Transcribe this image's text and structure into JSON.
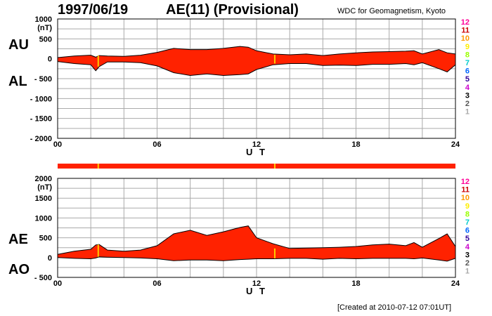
{
  "header": {
    "date": "1997/06/19",
    "title": "AE(11) (Provisional)",
    "source": "WDC for Geomagnetism, Kyoto",
    "created": "[Created at 2010-07-12 07:01UT]"
  },
  "colors": {
    "fill": "#ff2200",
    "outline": "#000000",
    "grid": "#aaaaaa",
    "marker": "#ffcc00",
    "station_colors": [
      "#ff0099",
      "#cc0000",
      "#ff9900",
      "#ffee00",
      "#99ff00",
      "#00cccc",
      "#0066ff",
      "#330099",
      "#cc00cc",
      "#000000",
      "#555555",
      "#aaaaaa"
    ]
  },
  "station_labels": [
    "12",
    "11",
    "10",
    "9",
    "8",
    "7",
    "6",
    "5",
    "4",
    "3",
    "2",
    "1"
  ],
  "marker_hours": [
    2.45,
    13.1
  ],
  "strip_hours": [
    0,
    24
  ],
  "chart_data": [
    {
      "type": "area",
      "name": "AU/AL",
      "labels": [
        "AU",
        "AL"
      ],
      "unit": "(nT)",
      "xlabel": "U T",
      "xlim": [
        0,
        24
      ],
      "ylim": [
        -2000,
        1000
      ],
      "yticks": [
        "1000",
        "500",
        "0",
        "- 500",
        "- 1000",
        "- 1500",
        "- 2000"
      ],
      "ytick_values": [
        1000,
        500,
        0,
        -500,
        -1000,
        -1500,
        -2000
      ],
      "xticks": [
        "00",
        "06",
        "12",
        "18",
        "24"
      ],
      "xtick_values": [
        0,
        6,
        12,
        18,
        24
      ],
      "hours": [
        0,
        1,
        2,
        2.3,
        2.5,
        3,
        4,
        5,
        6,
        7,
        8,
        9,
        10,
        11,
        11.5,
        12,
        13,
        14,
        15,
        16,
        17,
        18,
        19,
        20,
        21,
        21.5,
        22,
        23,
        23.5,
        24
      ],
      "upper": [
        30,
        70,
        90,
        40,
        80,
        70,
        60,
        90,
        160,
        260,
        230,
        230,
        260,
        310,
        290,
        200,
        120,
        100,
        120,
        80,
        120,
        150,
        170,
        180,
        190,
        200,
        120,
        230,
        150,
        120
      ],
      "lower": [
        -70,
        -120,
        -150,
        -300,
        -200,
        -80,
        -80,
        -100,
        -180,
        -350,
        -420,
        -380,
        -420,
        -400,
        -380,
        -270,
        -150,
        -120,
        -120,
        -170,
        -160,
        -170,
        -140,
        -140,
        -120,
        -150,
        -100,
        -250,
        -330,
        -150
      ]
    },
    {
      "type": "area",
      "name": "AE/AO",
      "labels": [
        "AE",
        "AO"
      ],
      "unit": "(nT)",
      "xlabel": "U T",
      "xlim": [
        0,
        24
      ],
      "ylim": [
        -500,
        2000
      ],
      "yticks": [
        "2000",
        "1500",
        "1000",
        "500",
        "0",
        "- 500"
      ],
      "ytick_values": [
        2000,
        1500,
        1000,
        500,
        0,
        -500
      ],
      "xticks": [
        "00",
        "06",
        "12",
        "18",
        "24"
      ],
      "xtick_values": [
        0,
        6,
        12,
        18,
        24
      ],
      "hours": [
        0,
        1,
        2,
        2.3,
        2.5,
        3,
        4,
        5,
        6,
        7,
        8,
        9,
        10,
        11,
        11.5,
        12,
        13,
        14,
        15,
        16,
        17,
        18,
        19,
        20,
        21,
        21.5,
        22,
        23,
        23.5,
        24
      ],
      "upper": [
        80,
        160,
        210,
        320,
        330,
        190,
        160,
        190,
        300,
        600,
        690,
        560,
        650,
        760,
        800,
        500,
        350,
        230,
        240,
        250,
        260,
        280,
        320,
        340,
        300,
        380,
        260,
        480,
        600,
        280
      ],
      "lower": [
        0,
        -20,
        -30,
        -10,
        20,
        10,
        0,
        -10,
        -30,
        -80,
        -60,
        -60,
        -80,
        -50,
        -40,
        -30,
        -30,
        -20,
        -20,
        -40,
        -20,
        -30,
        -20,
        -20,
        -20,
        -30,
        -10,
        -60,
        -90,
        -20
      ]
    }
  ]
}
